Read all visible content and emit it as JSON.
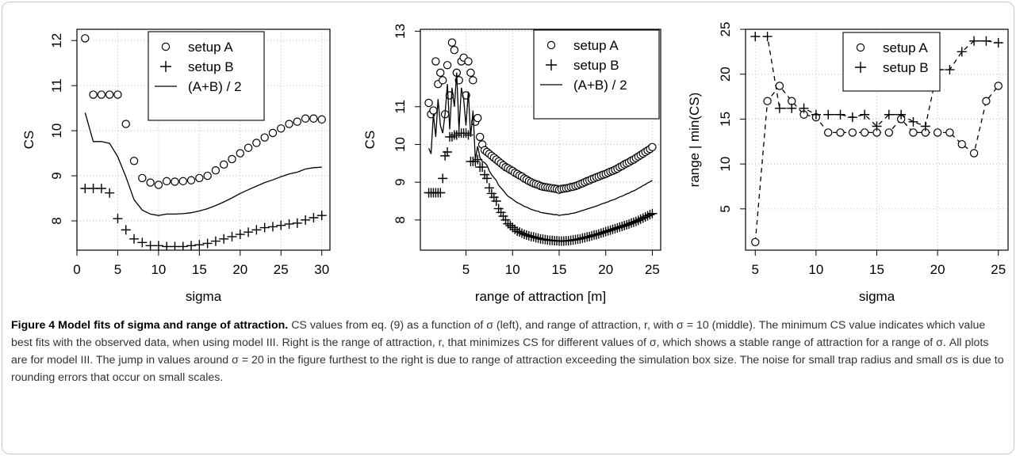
{
  "chart_data": [
    {
      "type": "scatter",
      "title": "",
      "xlabel": "sigma",
      "ylabel": "CS",
      "xlim": [
        0,
        31
      ],
      "ylim": [
        7.35,
        12.25
      ],
      "xticks": [
        0,
        5,
        10,
        15,
        20,
        25,
        30
      ],
      "yticks": [
        8,
        9,
        10,
        11,
        12
      ],
      "grid": true,
      "legend_position": "top-center",
      "series": [
        {
          "name": "setup A",
          "marker": "circle",
          "line": "none",
          "x": [
            1,
            2,
            3,
            4,
            5,
            6,
            7,
            8,
            9,
            10,
            11,
            12,
            13,
            14,
            15,
            16,
            17,
            18,
            19,
            20,
            21,
            22,
            23,
            24,
            25,
            26,
            27,
            28,
            29,
            30
          ],
          "y": [
            12.05,
            10.8,
            10.8,
            10.8,
            10.8,
            10.15,
            9.33,
            8.95,
            8.85,
            8.8,
            8.88,
            8.87,
            8.88,
            8.9,
            8.95,
            9.0,
            9.12,
            9.25,
            9.37,
            9.5,
            9.62,
            9.73,
            9.85,
            9.95,
            10.05,
            10.15,
            10.2,
            10.27,
            10.27,
            10.25
          ]
        },
        {
          "name": "setup B",
          "marker": "plus",
          "line": "none",
          "x": [
            1,
            2,
            3,
            4,
            5,
            6,
            7,
            8,
            9,
            10,
            11,
            12,
            13,
            14,
            15,
            16,
            17,
            18,
            19,
            20,
            21,
            22,
            23,
            24,
            25,
            26,
            27,
            28,
            29,
            30
          ],
          "y": [
            8.72,
            8.72,
            8.72,
            8.62,
            8.05,
            7.8,
            7.6,
            7.52,
            7.45,
            7.45,
            7.43,
            7.43,
            7.43,
            7.45,
            7.47,
            7.5,
            7.55,
            7.6,
            7.65,
            7.7,
            7.75,
            7.8,
            7.85,
            7.87,
            7.9,
            7.93,
            7.95,
            8.02,
            8.07,
            8.12
          ]
        },
        {
          "name": "(A+B) / 2",
          "marker": "none",
          "line": "solid",
          "x": [
            1,
            2,
            3,
            4,
            5,
            6,
            7,
            8,
            9,
            10,
            11,
            12,
            13,
            14,
            15,
            16,
            17,
            18,
            19,
            20,
            21,
            22,
            23,
            24,
            25,
            26,
            27,
            28,
            29,
            30
          ],
          "y": [
            10.4,
            9.76,
            9.76,
            9.72,
            9.42,
            8.98,
            8.47,
            8.24,
            8.15,
            8.12,
            8.15,
            8.15,
            8.16,
            8.18,
            8.22,
            8.27,
            8.34,
            8.42,
            8.51,
            8.61,
            8.69,
            8.77,
            8.85,
            8.91,
            8.98,
            9.04,
            9.08,
            9.15,
            9.18,
            9.19
          ]
        }
      ]
    },
    {
      "type": "scatter",
      "title": "",
      "xlabel": "range of attraction [m]",
      "ylabel": "CS",
      "xlim": [
        0.1,
        25.9
      ],
      "ylim": [
        7.2,
        13.05
      ],
      "xticks": [
        5,
        10,
        15,
        20,
        25
      ],
      "yticks": [
        8,
        9,
        10,
        11,
        13
      ],
      "grid": true,
      "legend_position": "top-right",
      "series": [
        {
          "name": "setup A",
          "marker": "circle",
          "line": "none",
          "x": [
            1.0,
            1.25,
            1.5,
            1.75,
            2.0,
            2.25,
            2.5,
            2.75,
            3.0,
            3.25,
            3.5,
            3.75,
            4.0,
            4.25,
            4.5,
            4.75,
            5.0,
            5.25,
            5.5,
            5.75,
            6.0,
            6.25,
            6.5,
            6.75,
            7.0,
            7.25,
            7.5,
            7.75,
            8.0,
            8.25,
            8.5,
            8.75,
            9.0,
            9.25,
            9.5,
            9.75,
            10.0,
            10.25,
            10.5,
            10.75,
            11.0,
            11.25,
            11.5,
            11.75,
            12.0,
            12.25,
            12.5,
            12.75,
            13.0,
            13.25,
            13.5,
            13.75,
            14.0,
            14.25,
            14.5,
            14.75,
            15.0,
            15.25,
            15.5,
            15.75,
            16.0,
            16.25,
            16.5,
            16.75,
            17.0,
            17.25,
            17.5,
            17.75,
            18.0,
            18.25,
            18.5,
            18.75,
            19.0,
            19.25,
            19.5,
            19.75,
            20.0,
            20.25,
            20.5,
            20.75,
            21.0,
            21.25,
            21.5,
            21.75,
            22.0,
            22.25,
            22.5,
            22.75,
            23.0,
            23.25,
            23.5,
            23.75,
            24.0,
            24.25,
            24.5,
            24.75,
            25.0
          ],
          "y": [
            11.1,
            10.8,
            10.9,
            12.2,
            11.6,
            11.9,
            11.7,
            10.8,
            12.1,
            11.3,
            12.7,
            12.5,
            11.9,
            11.7,
            12.2,
            12.3,
            11.3,
            12.2,
            11.9,
            11.7,
            10.6,
            10.7,
            10.2,
            10.0,
            9.85,
            9.8,
            9.75,
            9.7,
            9.65,
            9.6,
            9.55,
            9.5,
            9.45,
            9.4,
            9.37,
            9.33,
            9.3,
            9.25,
            9.22,
            9.18,
            9.15,
            9.1,
            9.07,
            9.03,
            9.0,
            8.97,
            8.95,
            8.93,
            8.9,
            8.88,
            8.87,
            8.86,
            8.85,
            8.84,
            8.83,
            8.82,
            8.8,
            8.82,
            8.83,
            8.84,
            8.85,
            8.87,
            8.88,
            8.9,
            8.92,
            8.95,
            8.97,
            9.0,
            9.03,
            9.05,
            9.08,
            9.1,
            9.13,
            9.15,
            9.18,
            9.2,
            9.22,
            9.25,
            9.28,
            9.3,
            9.33,
            9.36,
            9.4,
            9.43,
            9.47,
            9.5,
            9.53,
            9.57,
            9.6,
            9.64,
            9.68,
            9.72,
            9.76,
            9.8,
            9.84,
            9.88,
            9.93
          ]
        },
        {
          "name": "setup B",
          "marker": "plus",
          "line": "none",
          "x": [
            1.0,
            1.25,
            1.5,
            1.75,
            2.0,
            2.25,
            2.5,
            2.75,
            3.0,
            3.25,
            3.5,
            3.75,
            4.0,
            4.25,
            4.5,
            4.75,
            5.0,
            5.25,
            5.5,
            5.75,
            6.0,
            6.25,
            6.5,
            6.75,
            7.0,
            7.25,
            7.5,
            7.75,
            8.0,
            8.25,
            8.5,
            8.75,
            9.0,
            9.25,
            9.5,
            9.75,
            10.0,
            10.25,
            10.5,
            10.75,
            11.0,
            11.25,
            11.5,
            11.75,
            12.0,
            12.25,
            12.5,
            12.75,
            13.0,
            13.25,
            13.5,
            13.75,
            14.0,
            14.25,
            14.5,
            14.75,
            15.0,
            15.25,
            15.5,
            15.75,
            16.0,
            16.25,
            16.5,
            16.75,
            17.0,
            17.25,
            17.5,
            17.75,
            18.0,
            18.25,
            18.5,
            18.75,
            19.0,
            19.25,
            19.5,
            19.75,
            20.0,
            20.25,
            20.5,
            20.75,
            21.0,
            21.25,
            21.5,
            21.75,
            22.0,
            22.25,
            22.5,
            22.75,
            23.0,
            23.25,
            23.5,
            23.75,
            24.0,
            24.25,
            24.5,
            24.75,
            25.0
          ],
          "y": [
            8.72,
            8.72,
            8.72,
            8.72,
            8.72,
            8.72,
            9.1,
            9.7,
            9.8,
            10.2,
            10.2,
            10.25,
            10.25,
            10.3,
            10.3,
            10.3,
            10.3,
            10.25,
            9.55,
            9.55,
            9.55,
            9.6,
            9.4,
            9.4,
            9.2,
            9.1,
            8.85,
            8.7,
            8.6,
            8.5,
            8.3,
            8.2,
            8.1,
            8.0,
            7.9,
            7.85,
            7.8,
            7.75,
            7.7,
            7.68,
            7.65,
            7.62,
            7.6,
            7.58,
            7.56,
            7.55,
            7.53,
            7.52,
            7.5,
            7.49,
            7.48,
            7.47,
            7.46,
            7.46,
            7.45,
            7.45,
            7.44,
            7.44,
            7.44,
            7.45,
            7.45,
            7.46,
            7.47,
            7.48,
            7.49,
            7.5,
            7.52,
            7.53,
            7.55,
            7.56,
            7.58,
            7.6,
            7.61,
            7.63,
            7.65,
            7.67,
            7.69,
            7.71,
            7.73,
            7.75,
            7.77,
            7.79,
            7.81,
            7.83,
            7.85,
            7.87,
            7.89,
            7.92,
            7.94,
            7.96,
            7.99,
            8.02,
            8.05,
            8.08,
            8.11,
            8.14,
            8.17
          ]
        },
        {
          "name": "(A+B) / 2",
          "marker": "none",
          "line": "solid",
          "x": [
            1.0,
            1.25,
            1.5,
            1.75,
            2.0,
            2.25,
            2.5,
            2.75,
            3.0,
            3.25,
            3.5,
            3.75,
            4.0,
            4.25,
            4.5,
            4.75,
            5.0,
            5.25,
            5.5,
            5.75,
            6.0,
            6.25,
            6.5,
            6.75,
            7.0,
            7.25,
            7.5,
            7.75,
            8.0,
            8.25,
            8.5,
            8.75,
            9.0,
            9.25,
            9.5,
            9.75,
            10.0,
            10.25,
            10.5,
            10.75,
            11.0,
            11.25,
            11.5,
            11.75,
            12.0,
            12.25,
            12.5,
            12.75,
            13.0,
            13.25,
            13.5,
            13.75,
            14.0,
            14.25,
            14.5,
            14.75,
            15.0,
            15.25,
            15.5,
            15.75,
            16.0,
            16.25,
            16.5,
            16.75,
            17.0,
            17.25,
            17.5,
            17.75,
            18.0,
            18.25,
            18.5,
            18.75,
            19.0,
            19.25,
            19.5,
            19.75,
            20.0,
            20.25,
            20.5,
            20.75,
            21.0,
            21.25,
            21.5,
            21.75,
            22.0,
            22.25,
            22.5,
            22.75,
            23.0,
            23.25,
            23.5,
            23.75,
            24.0,
            24.25,
            24.5,
            24.75,
            25.0
          ],
          "y": [
            9.9,
            9.75,
            10.8,
            10.2,
            11.2,
            10.5,
            10.3,
            10.8,
            11.6,
            10.4,
            11.5,
            11.0,
            11.9,
            10.4,
            11.5,
            11.2,
            10.5,
            11.4,
            10.2,
            10.9,
            9.6,
            9.95,
            9.65,
            9.55,
            9.52,
            9.45,
            9.3,
            9.2,
            9.12,
            9.05,
            8.92,
            8.85,
            8.78,
            8.7,
            8.63,
            8.59,
            8.55,
            8.5,
            8.46,
            8.43,
            8.4,
            8.36,
            8.34,
            8.31,
            8.28,
            8.26,
            8.24,
            8.23,
            8.2,
            8.19,
            8.18,
            8.17,
            8.16,
            8.15,
            8.14,
            8.14,
            8.12,
            8.13,
            8.14,
            8.15,
            8.15,
            8.17,
            8.18,
            8.19,
            8.21,
            8.23,
            8.25,
            8.27,
            8.29,
            8.31,
            8.33,
            8.35,
            8.37,
            8.39,
            8.42,
            8.44,
            8.46,
            8.48,
            8.51,
            8.53,
            8.55,
            8.58,
            8.61,
            8.63,
            8.66,
            8.69,
            8.71,
            8.75,
            8.77,
            8.8,
            8.84,
            8.87,
            8.91,
            8.94,
            8.98,
            9.01,
            9.05
          ]
        }
      ]
    },
    {
      "type": "scatter",
      "title": "",
      "xlabel": "sigma",
      "ylabel": "range | min(CS)",
      "xlim": [
        4.2,
        25.8
      ],
      "ylim": [
        0.4,
        25.0
      ],
      "xticks": [
        5,
        10,
        15,
        20,
        25
      ],
      "yticks": [
        5,
        10,
        15,
        20,
        25
      ],
      "grid": true,
      "legend_position": "top-right",
      "series": [
        {
          "name": "setup A",
          "marker": "circle",
          "line": "dashed",
          "x": [
            5,
            6,
            7,
            8,
            9,
            10,
            11,
            12,
            13,
            14,
            15,
            16,
            17,
            18,
            19,
            20,
            21,
            22,
            23,
            24,
            25
          ],
          "y": [
            1.3,
            17.0,
            18.7,
            17.0,
            15.5,
            15.2,
            13.5,
            13.5,
            13.5,
            13.5,
            13.5,
            13.5,
            15.0,
            13.5,
            13.5,
            13.5,
            13.5,
            12.2,
            11.2,
            17.0,
            18.7
          ]
        },
        {
          "name": "setup B",
          "marker": "plus",
          "line": "dashed",
          "x": [
            5,
            6,
            7,
            8,
            9,
            10,
            11,
            12,
            13,
            14,
            15,
            16,
            17,
            18,
            19,
            20,
            21,
            22,
            23,
            24,
            25
          ],
          "y": [
            24.2,
            24.2,
            16.2,
            16.2,
            16.2,
            15.5,
            15.5,
            15.5,
            15.2,
            15.5,
            14.2,
            15.5,
            15.5,
            14.7,
            14.2,
            20.5,
            20.5,
            22.5,
            23.7,
            23.7,
            23.5
          ]
        }
      ]
    }
  ],
  "caption": {
    "label": "Figure 4",
    "title": "Model fits of sigma and range of attraction.",
    "text": "CS values from eq. (9) as a function of σ (left), and range of attraction, r, with σ = 10 (middle). The minimum CS value indicates which value best fits with the observed data, when using model III. Right is the range of attraction, r, that minimizes CS for different values of σ, which shows a stable range of attraction for a range of σ. All plots are for model III. The jump in values around σ = 20 in the figure furthest to the right is due to range of attraction exceeding the simulation box size. The noise for small trap radius and small σs is due to rounding errors that occur on small scales."
  }
}
